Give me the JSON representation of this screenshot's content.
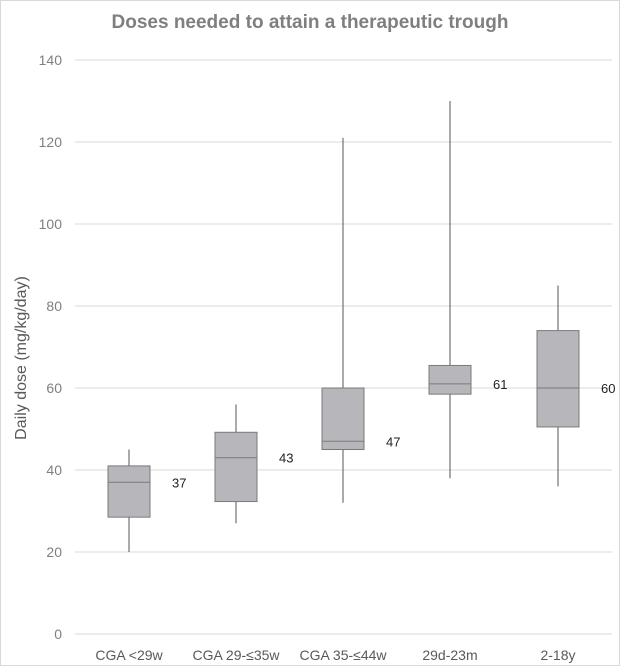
{
  "chart_data": {
    "type": "boxplot",
    "title": "Doses needed to attain a therapeutic trough",
    "xlabel": "",
    "ylabel": "Daily dose (mg/kg/day)",
    "ylim": [
      0,
      140
    ],
    "yticks": [
      0,
      20,
      40,
      60,
      80,
      100,
      120,
      140
    ],
    "grid": true,
    "legend": "none",
    "colors": {
      "box": "#b7b7bb",
      "box_stroke": "#7a7a7a",
      "whisker": "#555555",
      "grid": "#d9d9d9"
    },
    "categories": [
      "CGA <29w",
      "CGA 29-≤35w",
      "CGA 35-≤44w",
      "29d-23m",
      "2-18y"
    ],
    "boxes": [
      {
        "min": 20,
        "q1": 28.5,
        "median": 37,
        "q3": 41,
        "max": 45,
        "label": "37"
      },
      {
        "min": 27,
        "q1": 32.3,
        "median": 43,
        "q3": 49.2,
        "max": 56,
        "label": "43"
      },
      {
        "min": 32,
        "q1": 45,
        "median": 47,
        "q3": 60,
        "max": 121,
        "label": "47"
      },
      {
        "min": 38,
        "q1": 58.5,
        "median": 61,
        "q3": 65.5,
        "max": 130,
        "label": "61"
      },
      {
        "min": 36,
        "q1": 50.5,
        "median": 60,
        "q3": 74,
        "max": 85,
        "label": "60"
      }
    ]
  }
}
